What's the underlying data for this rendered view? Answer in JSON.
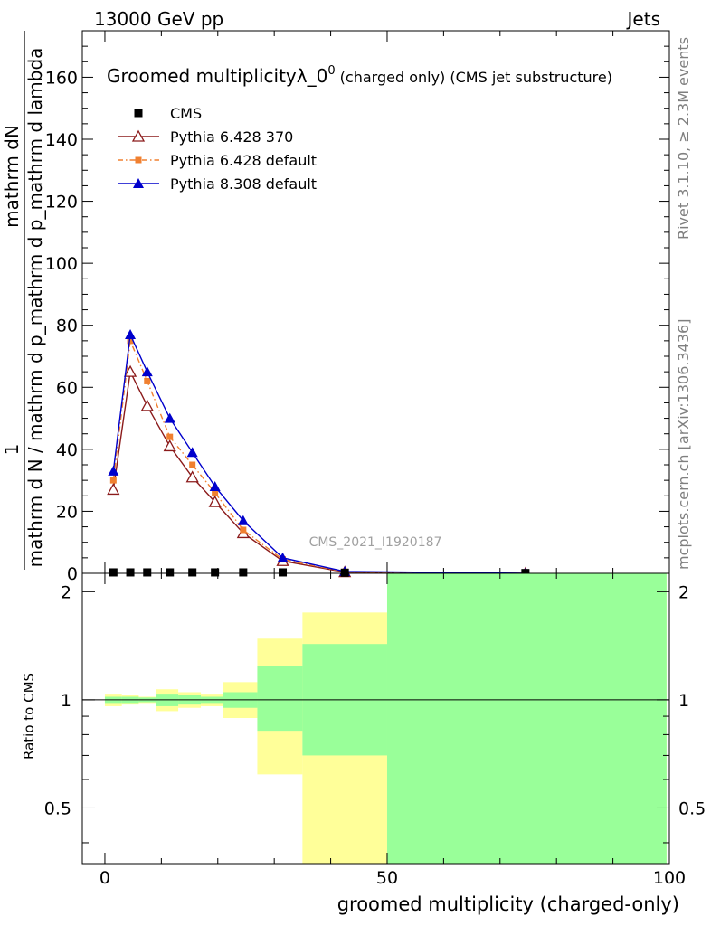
{
  "header": {
    "left": "13000 GeV pp",
    "right": "Jets"
  },
  "side_text": {
    "rivet": "Rivet 3.1.10, ≥ 2.3M events",
    "mcplots": "mcplots.cern.ch [arXiv:1306.3436]"
  },
  "colors": {
    "cms": "#000000",
    "pythia6_370": "#8b1a1a",
    "pythia6_default": "#f08030",
    "pythia8": "#0000cc",
    "band_inner": "#99ff99",
    "band_outer": "#ffff99"
  },
  "chart_data": [
    {
      "type": "line",
      "title": "Groomed multiplicityλ_0",
      "title_sup": "0",
      "title_suffix": " (charged only) (CMS jet substructure)",
      "ylabel_top": "1",
      "ylabel_num": "mathrm dN",
      "ylabel_den": "mathrm d N / mathrm d p_mathrm d p_mathrm d lambda",
      "watermark": "CMS_2021_I1920187",
      "xlim": [
        -4,
        100
      ],
      "ylim": [
        0,
        175
      ],
      "yticks": [
        "0",
        "20",
        "40",
        "60",
        "80",
        "100",
        "120",
        "140",
        "160"
      ],
      "legend_position": "top-left",
      "series": [
        {
          "name": "CMS",
          "marker": "square",
          "x": [
            1.5,
            4.5,
            7.5,
            11.5,
            15.5,
            19.5,
            24.5,
            31.5,
            42.5,
            74.5
          ],
          "y": [
            0.3,
            0.3,
            0.3,
            0.3,
            0.3,
            0.3,
            0.3,
            0.3,
            0.2,
            0.1
          ]
        },
        {
          "name": "Pythia 6.428 370",
          "marker": "triangle-open",
          "x": [
            1.5,
            4.5,
            7.5,
            11.5,
            15.5,
            19.5,
            24.5,
            31.5,
            42.5,
            74.5
          ],
          "y": [
            27,
            65,
            54,
            41,
            31,
            23,
            13,
            4,
            0.4,
            0
          ]
        },
        {
          "name": "Pythia 6.428 default",
          "marker": "square-small",
          "x": [
            1.5,
            4.5,
            7.5,
            11.5,
            15.5,
            19.5,
            24.5,
            31.5,
            42.5,
            74.5
          ],
          "y": [
            30,
            75,
            62,
            44,
            35,
            26,
            14,
            4.5,
            0.5,
            0
          ]
        },
        {
          "name": "Pythia 8.308 default",
          "marker": "triangle-filled",
          "x": [
            1.5,
            4.5,
            7.5,
            11.5,
            15.5,
            19.5,
            24.5,
            31.5,
            42.5,
            74.5
          ],
          "y": [
            33,
            77,
            65,
            50,
            39,
            28,
            17,
            5,
            0.6,
            0
          ]
        }
      ]
    },
    {
      "type": "area",
      "ylabel": "Ratio to CMS",
      "xlabel": "groomed multiplicity (charged-only)",
      "xlim": [
        -4,
        100
      ],
      "ylim": [
        0.35,
        2.25
      ],
      "xticks": [
        "0",
        "50",
        "100"
      ],
      "yticks": [
        "0.5",
        "1",
        "2"
      ],
      "bins": [
        {
          "x0": 0,
          "x1": 3,
          "inner": [
            0.98,
            1.02
          ],
          "outer": [
            0.96,
            1.04
          ]
        },
        {
          "x0": 3,
          "x1": 6,
          "inner": [
            0.98,
            1.02
          ],
          "outer": [
            0.97,
            1.03
          ]
        },
        {
          "x0": 6,
          "x1": 9,
          "inner": [
            0.985,
            1.015
          ],
          "outer": [
            0.98,
            1.02
          ]
        },
        {
          "x0": 9,
          "x1": 13,
          "inner": [
            0.96,
            1.04
          ],
          "outer": [
            0.93,
            1.07
          ]
        },
        {
          "x0": 13,
          "x1": 17,
          "inner": [
            0.97,
            1.03
          ],
          "outer": [
            0.95,
            1.05
          ]
        },
        {
          "x0": 17,
          "x1": 21,
          "inner": [
            0.98,
            1.02
          ],
          "outer": [
            0.96,
            1.04
          ]
        },
        {
          "x0": 21,
          "x1": 27,
          "inner": [
            0.95,
            1.05
          ],
          "outer": [
            0.89,
            1.12
          ]
        },
        {
          "x0": 27,
          "x1": 35,
          "inner": [
            0.82,
            1.24
          ],
          "outer": [
            0.62,
            1.48
          ]
        },
        {
          "x0": 35,
          "x1": 50,
          "inner": [
            0.7,
            1.43
          ],
          "outer": [
            0.35,
            1.75
          ]
        },
        {
          "x0": 50,
          "x1": 99.5,
          "inner": [
            0.35,
            2.25
          ],
          "outer": [
            0.35,
            2.25
          ]
        }
      ]
    }
  ]
}
